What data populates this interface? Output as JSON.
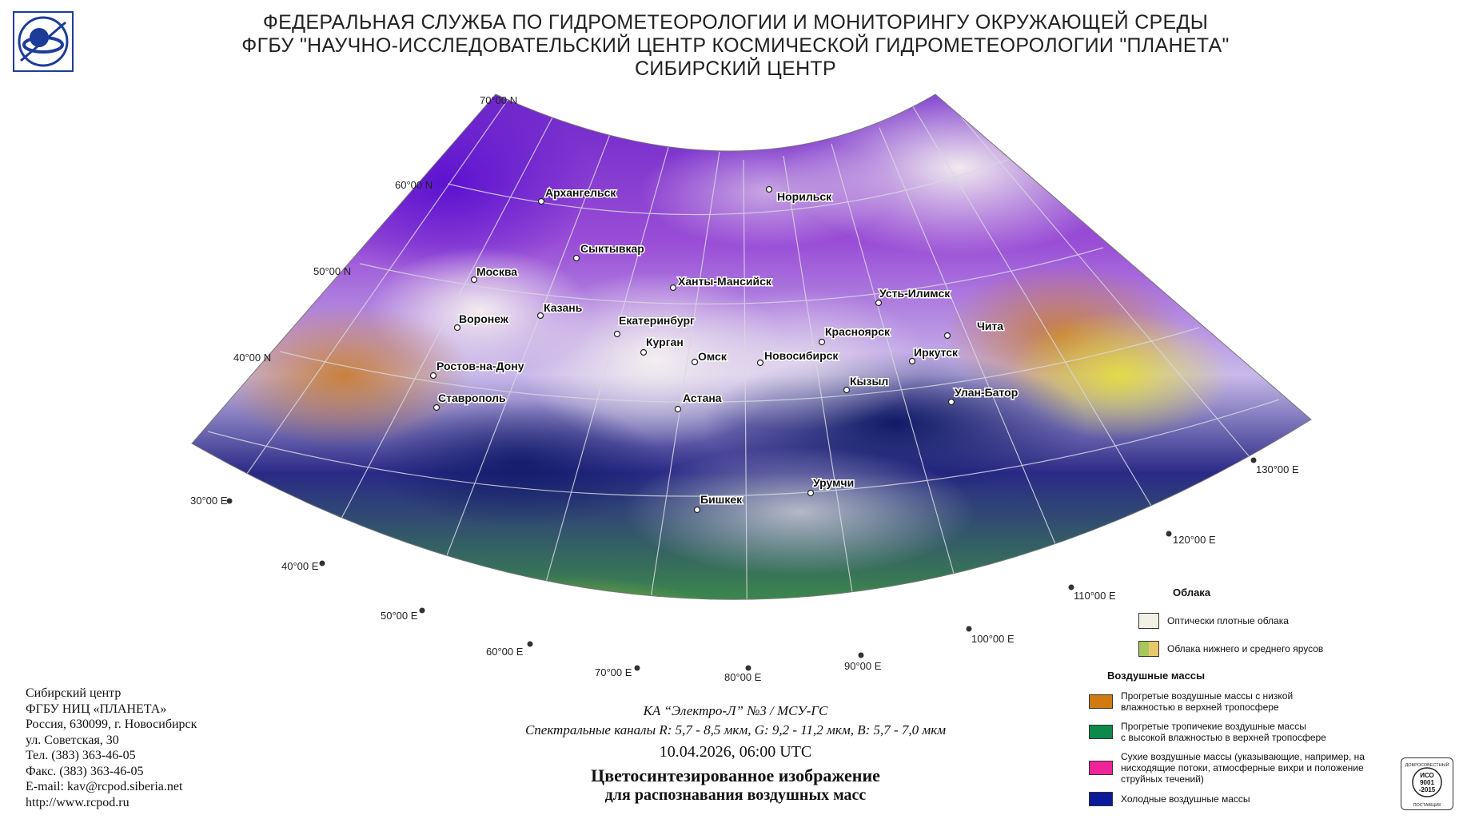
{
  "header": {
    "line1": "ФЕДЕРАЛЬНАЯ СЛУЖБА ПО ГИДРОМЕТЕОРОЛОГИИ И МОНИТОРИНГУ ОКРУЖАЮЩЕЙ СРЕДЫ",
    "line2": "ФГБУ \"НАУЧНО-ИССЛЕДОВАТЕЛЬСКИЙ ЦЕНТР КОСМИЧЕСКОЙ ГИДРОМЕТЕОРОЛОГИИ \"ПЛАНЕТА\"",
    "line3": "СИБИРСКИЙ ЦЕНТР"
  },
  "map": {
    "latitudes": [
      "70°00 N",
      "60°00 N",
      "50°00 N",
      "40°00 N"
    ],
    "longitudes": [
      "30°00 E",
      "40°00 E",
      "50°00 E",
      "60°00 E",
      "70°00 E",
      "80°00 E",
      "90°00 E",
      "100°00 E",
      "110°00 E",
      "120°00 E",
      "130°00 E"
    ],
    "cities": [
      "Архангельск",
      "Норильск",
      "Сыктывкар",
      "Москва",
      "Ханты-Мансийск",
      "Усть-Илимск",
      "Казань",
      "Воронеж",
      "Екатеринбург",
      "Красноярск",
      "Чита",
      "Курган",
      "Омск",
      "Новосибирск",
      "Иркутск",
      "Ростов-на-Дону",
      "Кызыл",
      "Улан-Батор",
      "Ставрополь",
      "Астана",
      "Урумчи",
      "Бишкек"
    ]
  },
  "contact": {
    "line1": "Сибирский центр",
    "line2": "ФГБУ НИЦ «ПЛАНЕТА»",
    "line3": "Россия, 630099, г. Новосибирск",
    "line4": "ул. Советская, 30",
    "line5": "Тел. (383) 363-46-05",
    "line6": "Факс. (383) 363-46-05",
    "line7": "E-mail: kav@rcpod.siberia.net",
    "line8": "http://www.rcpod.ru"
  },
  "caption": {
    "satellite": "КА “Электро-Л” №3 / МСУ-ГС",
    "channels": "Спектральные каналы R: 5,7 - 8,5 мкм, G: 9,2 - 11,2 мкм, B: 5,7 - 7,0 мкм",
    "datetime": "10.04.2026, 06:00 UTC",
    "title1": "Цветосинтезированное изображение",
    "title2": "для распознавания воздушных масс"
  },
  "legend": {
    "clouds_title": "Облака",
    "clouds": [
      {
        "label": "Оптически плотные облака",
        "color": "#f3f1e6"
      },
      {
        "label": "Облака нижнего и среднего ярусов",
        "colors": [
          "#a6c85a",
          "#e8c86a"
        ]
      }
    ],
    "air_title": "Воздушные массы",
    "air_masses": [
      {
        "line1": "Прогретые воздушные массы с низкой",
        "line2": "влажностью в верхней тропосфере",
        "line3": "",
        "color": "#d07a10"
      },
      {
        "line1": "Прогретые тропичекие воздушные массы",
        "line2": "с высокой влажностью в верхней тропосфере",
        "line3": "",
        "color": "#0c8a4c"
      },
      {
        "line1": "Сухие воздушные массы (указывающие, например, на",
        "line2": "нисходящие потоки, атмосферные вихри и положение",
        "line3": "струйных течений)",
        "color": "#f0249a"
      },
      {
        "line1": "Холодные воздушные массы",
        "line2": "",
        "line3": "",
        "color": "#0a1a9a"
      }
    ]
  },
  "badge": {
    "top": "ДОБРОСОВЕСТНЫЙ",
    "mid1": "ИСО",
    "mid2": "9001",
    "mid3": "-2015",
    "bottom": "ПОСТАВЩИК"
  }
}
